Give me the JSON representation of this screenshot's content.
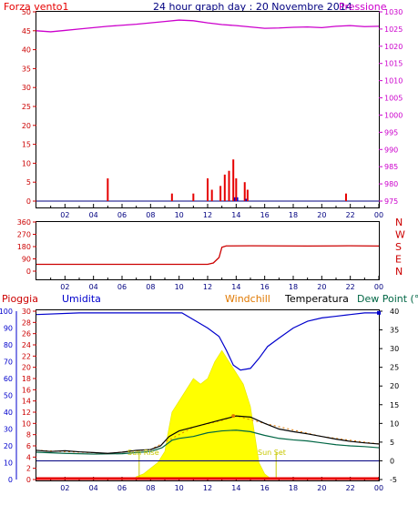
{
  "header": {
    "left_label": "Forza vento1",
    "title": "24 hour graph day : 20 Novembre 2014",
    "right_label": "Pressione"
  },
  "colors": {
    "wind": "#e60000",
    "pressure": "#cc00cc",
    "title": "#000080",
    "direction": "#cc0000",
    "rain": "#e60000",
    "humidity": "#0000cc",
    "windchill": "#e07800",
    "temperature": "#000000",
    "dewpoint": "#006644",
    "solar": "#ffff00",
    "sun_label": "#c8c800"
  },
  "x_ticks": [
    "02",
    "04",
    "06",
    "08",
    "10",
    "12",
    "14",
    "16",
    "18",
    "20",
    "22",
    "00"
  ],
  "chart_data": [
    {
      "type": "line",
      "name": "wind-pressure",
      "title": "24 hour graph day : 20 Novembre 2014",
      "y_left": {
        "label": "Forza vento1",
        "range": [
          0,
          50
        ],
        "ticks": [
          "0",
          "5",
          "10",
          "15",
          "20",
          "25",
          "30",
          "35",
          "40",
          "45",
          "50"
        ]
      },
      "y_right": {
        "label": "Pressione",
        "range": [
          975,
          1030
        ],
        "ticks": [
          "975",
          "980",
          "985",
          "990",
          "995",
          "1000",
          "1005",
          "1010",
          "1015",
          "1020",
          "1025",
          "1030"
        ]
      },
      "pressure": [
        [
          0,
          1024.5
        ],
        [
          1,
          1024.2
        ],
        [
          2,
          1024.6
        ],
        [
          3,
          1025.0
        ],
        [
          4,
          1025.4
        ],
        [
          5,
          1025.8
        ],
        [
          6,
          1026.1
        ],
        [
          7,
          1026.4
        ],
        [
          8,
          1026.8
        ],
        [
          9,
          1027.2
        ],
        [
          10,
          1027.6
        ],
        [
          11,
          1027.4
        ],
        [
          12,
          1026.8
        ],
        [
          13,
          1026.3
        ],
        [
          14,
          1026.0
        ],
        [
          15,
          1025.6
        ],
        [
          16,
          1025.2
        ],
        [
          17,
          1025.3
        ],
        [
          18,
          1025.5
        ],
        [
          19,
          1025.6
        ],
        [
          20,
          1025.4
        ],
        [
          21,
          1025.8
        ],
        [
          22,
          1026.0
        ],
        [
          23,
          1025.7
        ],
        [
          24,
          1025.8
        ]
      ],
      "wind_gust": [
        [
          5.0,
          6
        ],
        [
          9.5,
          2
        ],
        [
          11.0,
          2
        ],
        [
          12.0,
          6
        ],
        [
          12.3,
          3
        ],
        [
          12.9,
          4
        ],
        [
          13.2,
          7
        ],
        [
          13.5,
          8
        ],
        [
          13.8,
          11
        ],
        [
          14.0,
          6
        ],
        [
          14.6,
          5
        ],
        [
          14.8,
          3
        ],
        [
          21.7,
          2
        ]
      ],
      "wind_avg": [
        [
          13.8,
          1
        ],
        [
          14.0,
          1
        ],
        [
          14.6,
          0.6
        ]
      ]
    },
    {
      "type": "line",
      "name": "wind-direction",
      "y_left": {
        "range": [
          0,
          360
        ],
        "ticks": [
          "0",
          "90",
          "180",
          "270",
          "360"
        ]
      },
      "y_right": {
        "compass": [
          "N",
          "W",
          "S",
          "E",
          "N"
        ]
      },
      "direction": [
        [
          0,
          50
        ],
        [
          12.0,
          50
        ],
        [
          12.4,
          60
        ],
        [
          12.8,
          100
        ],
        [
          13.0,
          175
        ],
        [
          13.3,
          185
        ],
        [
          15,
          186
        ],
        [
          17,
          185
        ],
        [
          19,
          184
        ],
        [
          21,
          185
        ],
        [
          22,
          186
        ],
        [
          24,
          184
        ]
      ]
    },
    {
      "type": "line",
      "name": "weather",
      "legend": [
        "Pioggia",
        "Umidita",
        "Windchill",
        "Temperatura",
        "Dew Point (°C"
      ],
      "y_humidity": {
        "range": [
          0,
          100
        ],
        "ticks": [
          "0",
          "10",
          "20",
          "30",
          "40",
          "50",
          "60",
          "70",
          "80",
          "90",
          "100"
        ]
      },
      "y_rain": {
        "range": [
          0,
          30
        ],
        "ticks": [
          "0",
          "2",
          "4",
          "6",
          "8",
          "10",
          "12",
          "14",
          "16",
          "18",
          "20",
          "22",
          "24",
          "26",
          "28",
          "30"
        ]
      },
      "y_temp": {
        "range": [
          -5,
          40
        ],
        "ticks": [
          "-5",
          "0",
          "5",
          "10",
          "15",
          "20",
          "25",
          "30",
          "35",
          "40"
        ]
      },
      "annotations": [
        "Sun Rise",
        "Sun Set"
      ],
      "humidity": [
        [
          0,
          98
        ],
        [
          3,
          99
        ],
        [
          6,
          99
        ],
        [
          9,
          99
        ],
        [
          10.2,
          99
        ],
        [
          11,
          95
        ],
        [
          12,
          90
        ],
        [
          12.8,
          85
        ],
        [
          13.3,
          77
        ],
        [
          13.8,
          68
        ],
        [
          14.3,
          65
        ],
        [
          15.0,
          66
        ],
        [
          15.6,
          72
        ],
        [
          16.2,
          79
        ],
        [
          17,
          84
        ],
        [
          18,
          90
        ],
        [
          19,
          94
        ],
        [
          20,
          96
        ],
        [
          21,
          97
        ],
        [
          22,
          98
        ],
        [
          23,
          99
        ],
        [
          24,
          99
        ]
      ],
      "temperature": [
        [
          0,
          2.8
        ],
        [
          1,
          2.5
        ],
        [
          2,
          2.7
        ],
        [
          3,
          2.4
        ],
        [
          4,
          2.2
        ],
        [
          5,
          2.0
        ],
        [
          6,
          2.3
        ],
        [
          7,
          2.8
        ],
        [
          8,
          3.0
        ],
        [
          8.7,
          4.0
        ],
        [
          9.3,
          6.5
        ],
        [
          10,
          8.0
        ],
        [
          11,
          9.0
        ],
        [
          12,
          10.0
        ],
        [
          13,
          11.0
        ],
        [
          13.5,
          11.5
        ],
        [
          14,
          12.0
        ],
        [
          15,
          11.7
        ],
        [
          16,
          10.0
        ],
        [
          17,
          8.5
        ],
        [
          18,
          7.8
        ],
        [
          19,
          7.2
        ],
        [
          20,
          6.5
        ],
        [
          21,
          5.8
        ],
        [
          22,
          5.2
        ],
        [
          23,
          4.8
        ],
        [
          24,
          4.5
        ]
      ],
      "dewpoint": [
        [
          0,
          2.3
        ],
        [
          2,
          2.0
        ],
        [
          4,
          1.8
        ],
        [
          6,
          1.9
        ],
        [
          7,
          2.2
        ],
        [
          8,
          2.5
        ],
        [
          8.8,
          3.5
        ],
        [
          9.5,
          5.5
        ],
        [
          10,
          6.0
        ],
        [
          11,
          6.5
        ],
        [
          12,
          7.5
        ],
        [
          13,
          8.0
        ],
        [
          14,
          8.2
        ],
        [
          15,
          7.8
        ],
        [
          16,
          6.8
        ],
        [
          17,
          6.0
        ],
        [
          18,
          5.6
        ],
        [
          19,
          5.3
        ],
        [
          20,
          4.8
        ],
        [
          21,
          4.3
        ],
        [
          22,
          4.0
        ],
        [
          23,
          3.8
        ],
        [
          24,
          3.5
        ]
      ],
      "windchill": [
        [
          0,
          2.8
        ],
        [
          5,
          2.0
        ],
        [
          8,
          3.0
        ],
        [
          11,
          9.0
        ],
        [
          13,
          10.8
        ],
        [
          13.7,
          11.7
        ],
        [
          14,
          12.0
        ],
        [
          16,
          10.0
        ],
        [
          20,
          6.5
        ],
        [
          24,
          4.5
        ]
      ],
      "solar": [
        [
          0,
          0
        ],
        [
          6.8,
          0
        ],
        [
          7.0,
          0.5
        ],
        [
          7.5,
          1
        ],
        [
          8.0,
          2
        ],
        [
          8.5,
          3
        ],
        [
          9.0,
          5
        ],
        [
          9.2,
          8
        ],
        [
          9.5,
          12
        ],
        [
          10,
          14
        ],
        [
          10.5,
          16
        ],
        [
          11,
          18
        ],
        [
          11.5,
          17
        ],
        [
          12,
          18
        ],
        [
          12.5,
          21
        ],
        [
          13,
          23
        ],
        [
          13.5,
          21
        ],
        [
          14,
          19
        ],
        [
          14.5,
          17
        ],
        [
          15,
          13
        ],
        [
          15.3,
          8
        ],
        [
          15.6,
          3
        ],
        [
          16,
          1
        ],
        [
          16.5,
          0
        ],
        [
          24,
          0
        ]
      ],
      "rain": [
        [
          0,
          0
        ],
        [
          24,
          0
        ]
      ],
      "sunrise": 7.2,
      "sunset": 16.8
    }
  ]
}
